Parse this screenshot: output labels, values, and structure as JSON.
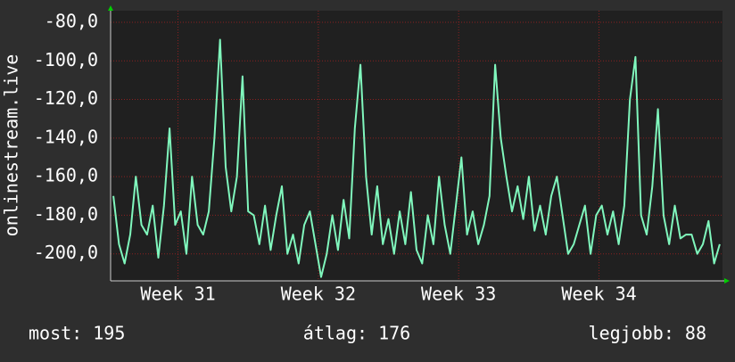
{
  "chart_data": {
    "type": "line",
    "ylabel": "onlinestream.live",
    "x": [
      30.54,
      30.58,
      30.62,
      30.66,
      30.7,
      30.74,
      30.78,
      30.82,
      30.86,
      30.9,
      30.94,
      30.98,
      31.02,
      31.06,
      31.1,
      31.14,
      31.18,
      31.22,
      31.26,
      31.3,
      31.34,
      31.38,
      31.42,
      31.46,
      31.5,
      31.54,
      31.58,
      31.62,
      31.66,
      31.7,
      31.74,
      31.78,
      31.82,
      31.86,
      31.9,
      31.94,
      31.98,
      32.02,
      32.06,
      32.1,
      32.14,
      32.18,
      32.22,
      32.26,
      32.3,
      32.34,
      32.38,
      32.42,
      32.46,
      32.5,
      32.54,
      32.58,
      32.62,
      32.66,
      32.7,
      32.74,
      32.78,
      32.82,
      32.86,
      32.9,
      32.94,
      32.98,
      33.02,
      33.06,
      33.1,
      33.14,
      33.18,
      33.22,
      33.26,
      33.3,
      33.34,
      33.38,
      33.42,
      33.46,
      33.5,
      33.54,
      33.58,
      33.62,
      33.66,
      33.7,
      33.74,
      33.78,
      33.82,
      33.86,
      33.9,
      33.94,
      33.98,
      34.02,
      34.06,
      34.1,
      34.14,
      34.18,
      34.22,
      34.26,
      34.3,
      34.34,
      34.38,
      34.42,
      34.46,
      34.5,
      34.54,
      34.58,
      34.62,
      34.66,
      34.7,
      34.74,
      34.78,
      34.82,
      34.86
    ],
    "series": [
      {
        "color": "#80f7bd",
        "values": [
          -170,
          -195,
          -205,
          -190,
          -160,
          -185,
          -190,
          -175,
          -202,
          -175,
          -135,
          -185,
          -178,
          -200,
          -160,
          -185,
          -190,
          -178,
          -140,
          -89,
          -155,
          -178,
          -160,
          -108,
          -178,
          -180,
          -195,
          -175,
          -198,
          -180,
          -165,
          -200,
          -190,
          -205,
          -185,
          -178,
          -195,
          -212,
          -200,
          -180,
          -198,
          -172,
          -192,
          -135,
          -102,
          -160,
          -190,
          -165,
          -195,
          -182,
          -200,
          -178,
          -195,
          -168,
          -198,
          -205,
          -180,
          -195,
          -160,
          -185,
          -200,
          -175,
          -150,
          -190,
          -178,
          -195,
          -185,
          -170,
          -102,
          -140,
          -160,
          -178,
          -165,
          -182,
          -160,
          -188,
          -175,
          -190,
          -170,
          -160,
          -180,
          -200,
          -195,
          -185,
          -175,
          -200,
          -180,
          -175,
          -190,
          -178,
          -195,
          -175,
          -120,
          -98,
          -180,
          -190,
          -165,
          -125,
          -180,
          -195,
          -175,
          -192,
          -190,
          -190,
          -200,
          -195,
          -183,
          -205,
          -195
        ]
      }
    ],
    "xlim": [
      30.52,
      34.88
    ],
    "xticks": [
      {
        "value": 31,
        "label": "Week 31"
      },
      {
        "value": 32,
        "label": "Week 32"
      },
      {
        "value": 33,
        "label": "Week 33"
      },
      {
        "value": 34,
        "label": "Week 34"
      }
    ],
    "ylim": [
      -214,
      -74
    ],
    "yticks": [
      {
        "value": -80,
        "label": "-80,0"
      },
      {
        "value": -100,
        "label": "-100,0"
      },
      {
        "value": -120,
        "label": "-120,0"
      },
      {
        "value": -140,
        "label": "-140,0"
      },
      {
        "value": -160,
        "label": "-160,0"
      },
      {
        "value": -180,
        "label": "-180,0"
      },
      {
        "value": -200,
        "label": "-200,0"
      }
    ],
    "grid": true,
    "stats": [
      "most: 195",
      "átlag: 176",
      "legjobb: 88"
    ]
  }
}
